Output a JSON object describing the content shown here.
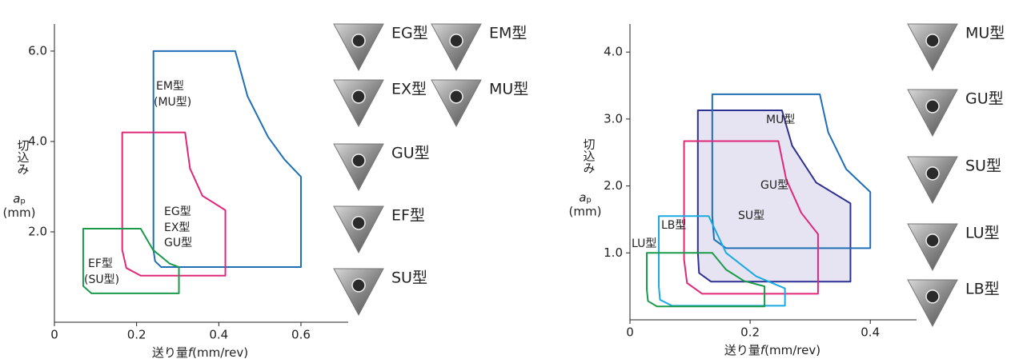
{
  "chart_data": [
    {
      "type": "area",
      "xlabel": [
        "送り量",
        "f",
        "(mm/rev)"
      ],
      "ylabel": [
        "切込み",
        "a",
        "p",
        "(mm)"
      ],
      "xlim": [
        0,
        0.715
      ],
      "ylim": [
        0,
        6.6
      ],
      "xticks": [
        0,
        0.2,
        0.4,
        0.6
      ],
      "yticks": [
        {
          "value": 2,
          "label": "2.0"
        },
        {
          "value": 4,
          "label": "4.0"
        },
        {
          "value": 6,
          "label": "6.0"
        }
      ],
      "series": [
        {
          "color": "#1f6fb5",
          "x": [
            0.241,
            0.44,
            0.47,
            0.52,
            0.56,
            0.6,
            0.6,
            0.26,
            0.245,
            0.241
          ],
          "y": [
            6.0,
            6.0,
            5.0,
            4.1,
            3.6,
            3.22,
            1.22,
            1.22,
            1.35,
            1.6
          ]
        },
        {
          "color": "#e0287a",
          "x": [
            0.165,
            0.318,
            0.33,
            0.36,
            0.416,
            0.416,
            0.21,
            0.175,
            0.165
          ],
          "y": [
            4.2,
            4.2,
            3.4,
            2.8,
            2.48,
            1.03,
            1.03,
            1.2,
            1.6
          ]
        },
        {
          "color": "#1a9b4b",
          "x": [
            0.07,
            0.21,
            0.24,
            0.28,
            0.303,
            0.303,
            0.09,
            0.07
          ],
          "y": [
            2.07,
            2.07,
            1.6,
            1.3,
            1.22,
            0.64,
            0.64,
            0.8
          ]
        }
      ],
      "annotations": [
        {
          "text": "EM型",
          "color": "#1f6fb5"
        },
        {
          "text": "(MU型)",
          "color": "#222222"
        },
        {
          "text": "EG型",
          "color": "#e0287a"
        },
        {
          "text": "EX型",
          "color": "#e0287a"
        },
        {
          "text": "GU型",
          "color": "#e0287a"
        },
        {
          "text": "EF型",
          "color": "#1a9b4b"
        },
        {
          "text": "(SU型)",
          "color": "#222222"
        }
      ],
      "inserts": [
        {
          "label": "EG型",
          "color": "#e0287a"
        },
        {
          "label": "EM型",
          "color": "#1f6fb5"
        },
        {
          "label": "EX型",
          "color": "#e0287a"
        },
        {
          "label": "MU型",
          "color": "#1f6fb5"
        },
        {
          "label": "GU型",
          "color": "#e0287a"
        },
        {
          "label": "EF型",
          "color": "#1a9b4b"
        },
        {
          "label": "SU型",
          "color": "#1a9b4b"
        }
      ]
    },
    {
      "type": "area",
      "xlabel": [
        "送り量",
        "f",
        "(mm/rev)"
      ],
      "ylabel": [
        "切込み",
        "a",
        "p",
        "(mm)"
      ],
      "xlim": [
        0,
        0.477
      ],
      "ylim": [
        0,
        4.42
      ],
      "xticks": [
        0,
        0.2,
        0.4
      ],
      "yticks": [
        {
          "value": 1,
          "label": "1.0"
        },
        {
          "value": 2,
          "label": "2.0"
        },
        {
          "value": 3,
          "label": "3.0"
        },
        {
          "value": 4,
          "label": "4.0"
        }
      ],
      "series": [
        {
          "color": "#2e3192",
          "fill": "#e6e3f2",
          "x": [
            0.113,
            0.253,
            0.27,
            0.31,
            0.367,
            0.367,
            0.135,
            0.115,
            0.113
          ],
          "y": [
            3.13,
            3.13,
            2.6,
            2.05,
            1.74,
            0.57,
            0.57,
            0.7,
            1.0
          ]
        },
        {
          "color": "#1f6fb5",
          "x": [
            0.137,
            0.316,
            0.33,
            0.36,
            0.4,
            0.4,
            0.16,
            0.14,
            0.137
          ],
          "y": [
            3.37,
            3.37,
            2.8,
            2.25,
            1.91,
            1.07,
            1.07,
            1.2,
            1.55
          ]
        },
        {
          "color": "#e0287a",
          "x": [
            0.09,
            0.247,
            0.26,
            0.285,
            0.313,
            0.313,
            0.12,
            0.095,
            0.09
          ],
          "y": [
            2.67,
            2.67,
            2.1,
            1.6,
            1.28,
            0.39,
            0.39,
            0.55,
            0.9
          ]
        },
        {
          "color": "#1aa9e0",
          "x": [
            0.048,
            0.131,
            0.16,
            0.21,
            0.258,
            0.258,
            0.07,
            0.05,
            0.048
          ],
          "y": [
            1.55,
            1.55,
            1.0,
            0.65,
            0.47,
            0.21,
            0.21,
            0.3,
            0.5
          ]
        },
        {
          "color": "#1a9b4b",
          "x": [
            0.028,
            0.137,
            0.16,
            0.19,
            0.224,
            0.224,
            0.045,
            0.03,
            0.028
          ],
          "y": [
            1.0,
            1.0,
            0.75,
            0.58,
            0.5,
            0.2,
            0.2,
            0.28,
            0.45
          ]
        }
      ],
      "annotations": [
        {
          "text": "MU型",
          "color": "#2e3192"
        },
        {
          "text": "GU型",
          "color": "#2e3192"
        },
        {
          "text": "SU型",
          "color": "#e0287a"
        },
        {
          "text": "LB型",
          "color": "#1aa9e0"
        },
        {
          "text": "LU型",
          "color": "#1a9b4b"
        }
      ],
      "inserts": [
        {
          "label": "MU型",
          "color": "#1f6fb5"
        },
        {
          "label": "GU型",
          "color": "#2e3192"
        },
        {
          "label": "SU型",
          "color": "#e0287a"
        },
        {
          "label": "LU型",
          "color": "#1a9b4b"
        },
        {
          "label": "LB型",
          "color": "#1aa9e0"
        }
      ]
    }
  ]
}
